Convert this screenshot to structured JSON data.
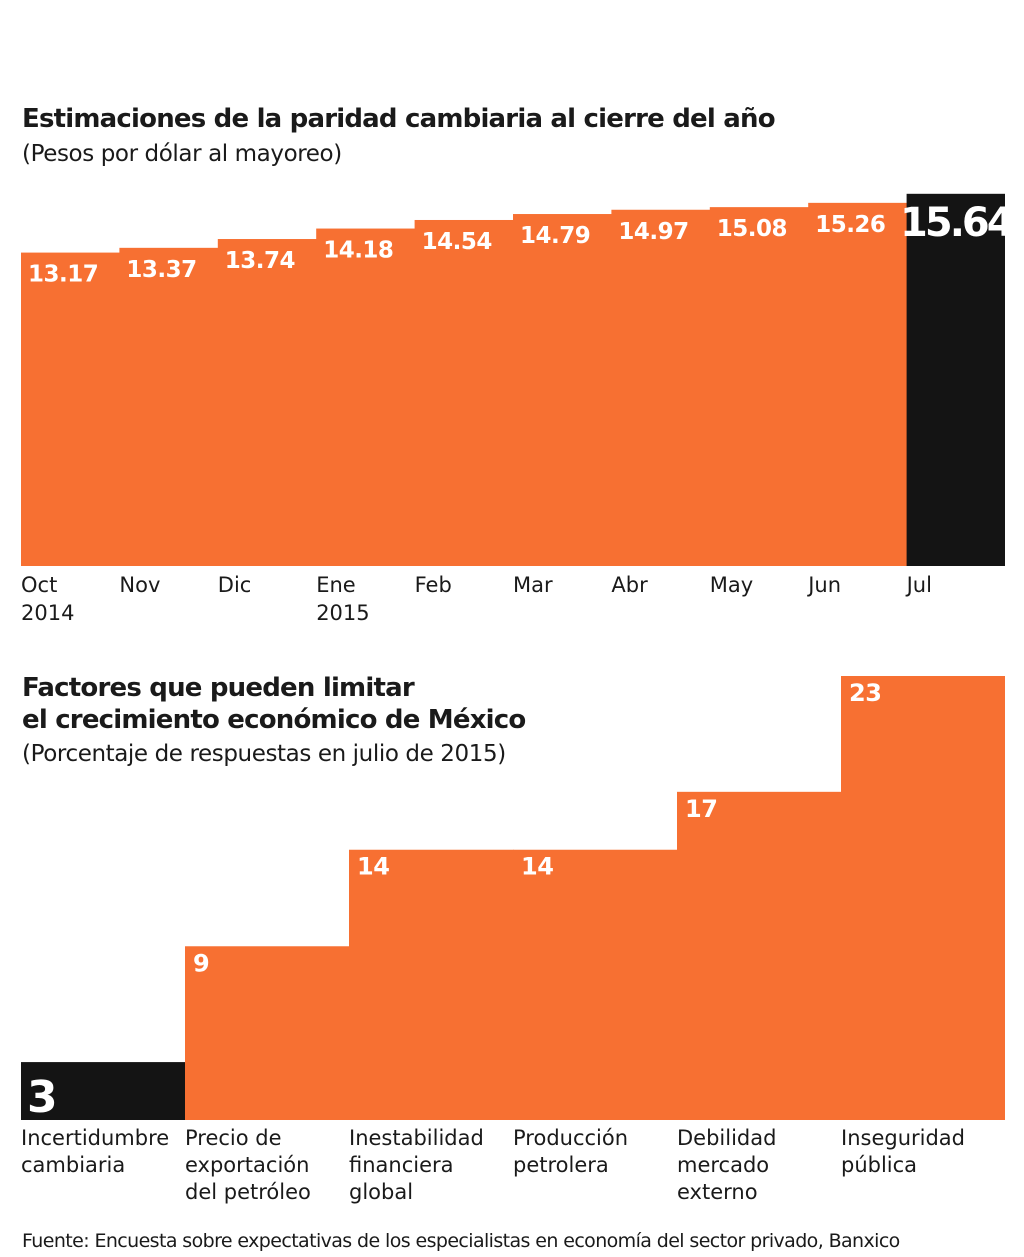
{
  "chart_data": [
    {
      "type": "bar",
      "title": "Estimaciones de la paridad cambiaria al cierre del año",
      "subtitle": "(Pesos por dólar al mayoreo)",
      "categories": [
        [
          "Oct",
          "2014"
        ],
        [
          "Nov"
        ],
        [
          "Dic"
        ],
        [
          "Ene",
          "2015"
        ],
        [
          "Feb"
        ],
        [
          "Mar"
        ],
        [
          "Abr"
        ],
        [
          "May"
        ],
        [
          "Jun"
        ],
        [
          "Jul"
        ]
      ],
      "values": [
        13.17,
        13.37,
        13.74,
        14.18,
        14.54,
        14.79,
        14.97,
        15.08,
        15.26,
        15.64
      ],
      "value_labels": [
        "13.17",
        "13.37",
        "13.74",
        "14.18",
        "14.54",
        "14.79",
        "14.97",
        "15.08",
        "15.26",
        "15.64"
      ],
      "highlight_index": 9,
      "ylim": [
        0,
        15.8
      ],
      "xlabel": "",
      "ylabel": "",
      "grid": false
    },
    {
      "type": "bar",
      "title_lines": [
        "Factores que pueden limitar",
        "el crecimiento económico de México"
      ],
      "subtitle": "(Porcentaje de respuestas en julio de 2015)",
      "categories": [
        [
          "Incertidumbre",
          "cambiaria"
        ],
        [
          "Precio de",
          "exportación",
          "del petróleo"
        ],
        [
          "Inestabilidad",
          "financiera",
          "global"
        ],
        [
          "Producción",
          "petrolera"
        ],
        [
          "Debilidad",
          "mercado",
          "externo"
        ],
        [
          "Inseguridad",
          "pública"
        ]
      ],
      "values": [
        3,
        9,
        14,
        14,
        17,
        23
      ],
      "value_labels": [
        "3",
        "9",
        "14",
        "14",
        "17",
        "23"
      ],
      "highlight_index": 0,
      "ylim": [
        0,
        23
      ],
      "xlabel": "",
      "ylabel": "",
      "grid": false
    }
  ],
  "source": "Fuente: Encuesta sobre expectativas de los especialistas en economía del sector privado, Banxico",
  "colors": {
    "bar": "#f77032",
    "highlight": "#141414",
    "text": "#1a1a1a",
    "bar_text": "#ffffff"
  }
}
